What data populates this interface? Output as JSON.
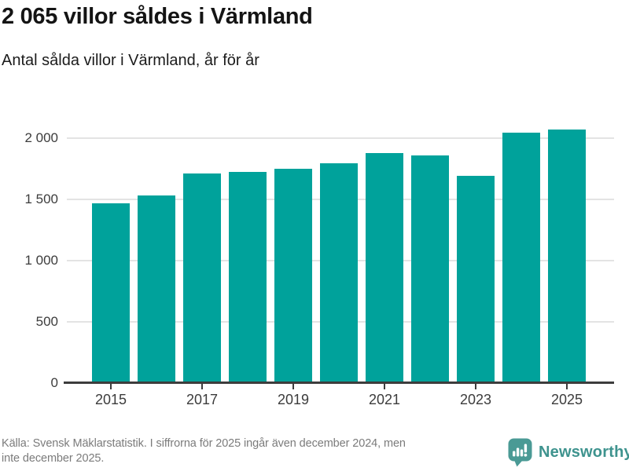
{
  "chart_data": {
    "type": "bar",
    "title": "2 065 villor såldes i Värmland",
    "subtitle": "Antal sålda villor i Värmland, år för år",
    "categories": [
      "2015",
      "2016",
      "2017",
      "2018",
      "2019",
      "2020",
      "2021",
      "2022",
      "2023",
      "2024",
      "2025"
    ],
    "values": [
      1465,
      1530,
      1710,
      1720,
      1750,
      1790,
      1875,
      1855,
      1690,
      2040,
      2065
    ],
    "bar_color": "#00a29b",
    "ylim": [
      0,
      2110
    ],
    "yticks": [
      0,
      500,
      1000,
      1500,
      2000
    ],
    "ytick_labels": [
      "0",
      "500",
      "1 000",
      "1 500",
      "2 000"
    ],
    "xtick_labels": [
      "2015",
      "2017",
      "2019",
      "2021",
      "2023",
      "2025"
    ],
    "grid": true,
    "legend": "none",
    "gridline_color": "#e3e3e3",
    "axis_color": "#3d3d3d"
  },
  "footer": {
    "source_line1": "Källa: Svensk Mäklarstatistik. I siffrorna för 2025 ingår även december 2024, men",
    "source_line2": "inte december 2025.",
    "brand": "Newsworthy",
    "brand_color": "#3e938e",
    "icon_color": "#4a9a95"
  }
}
